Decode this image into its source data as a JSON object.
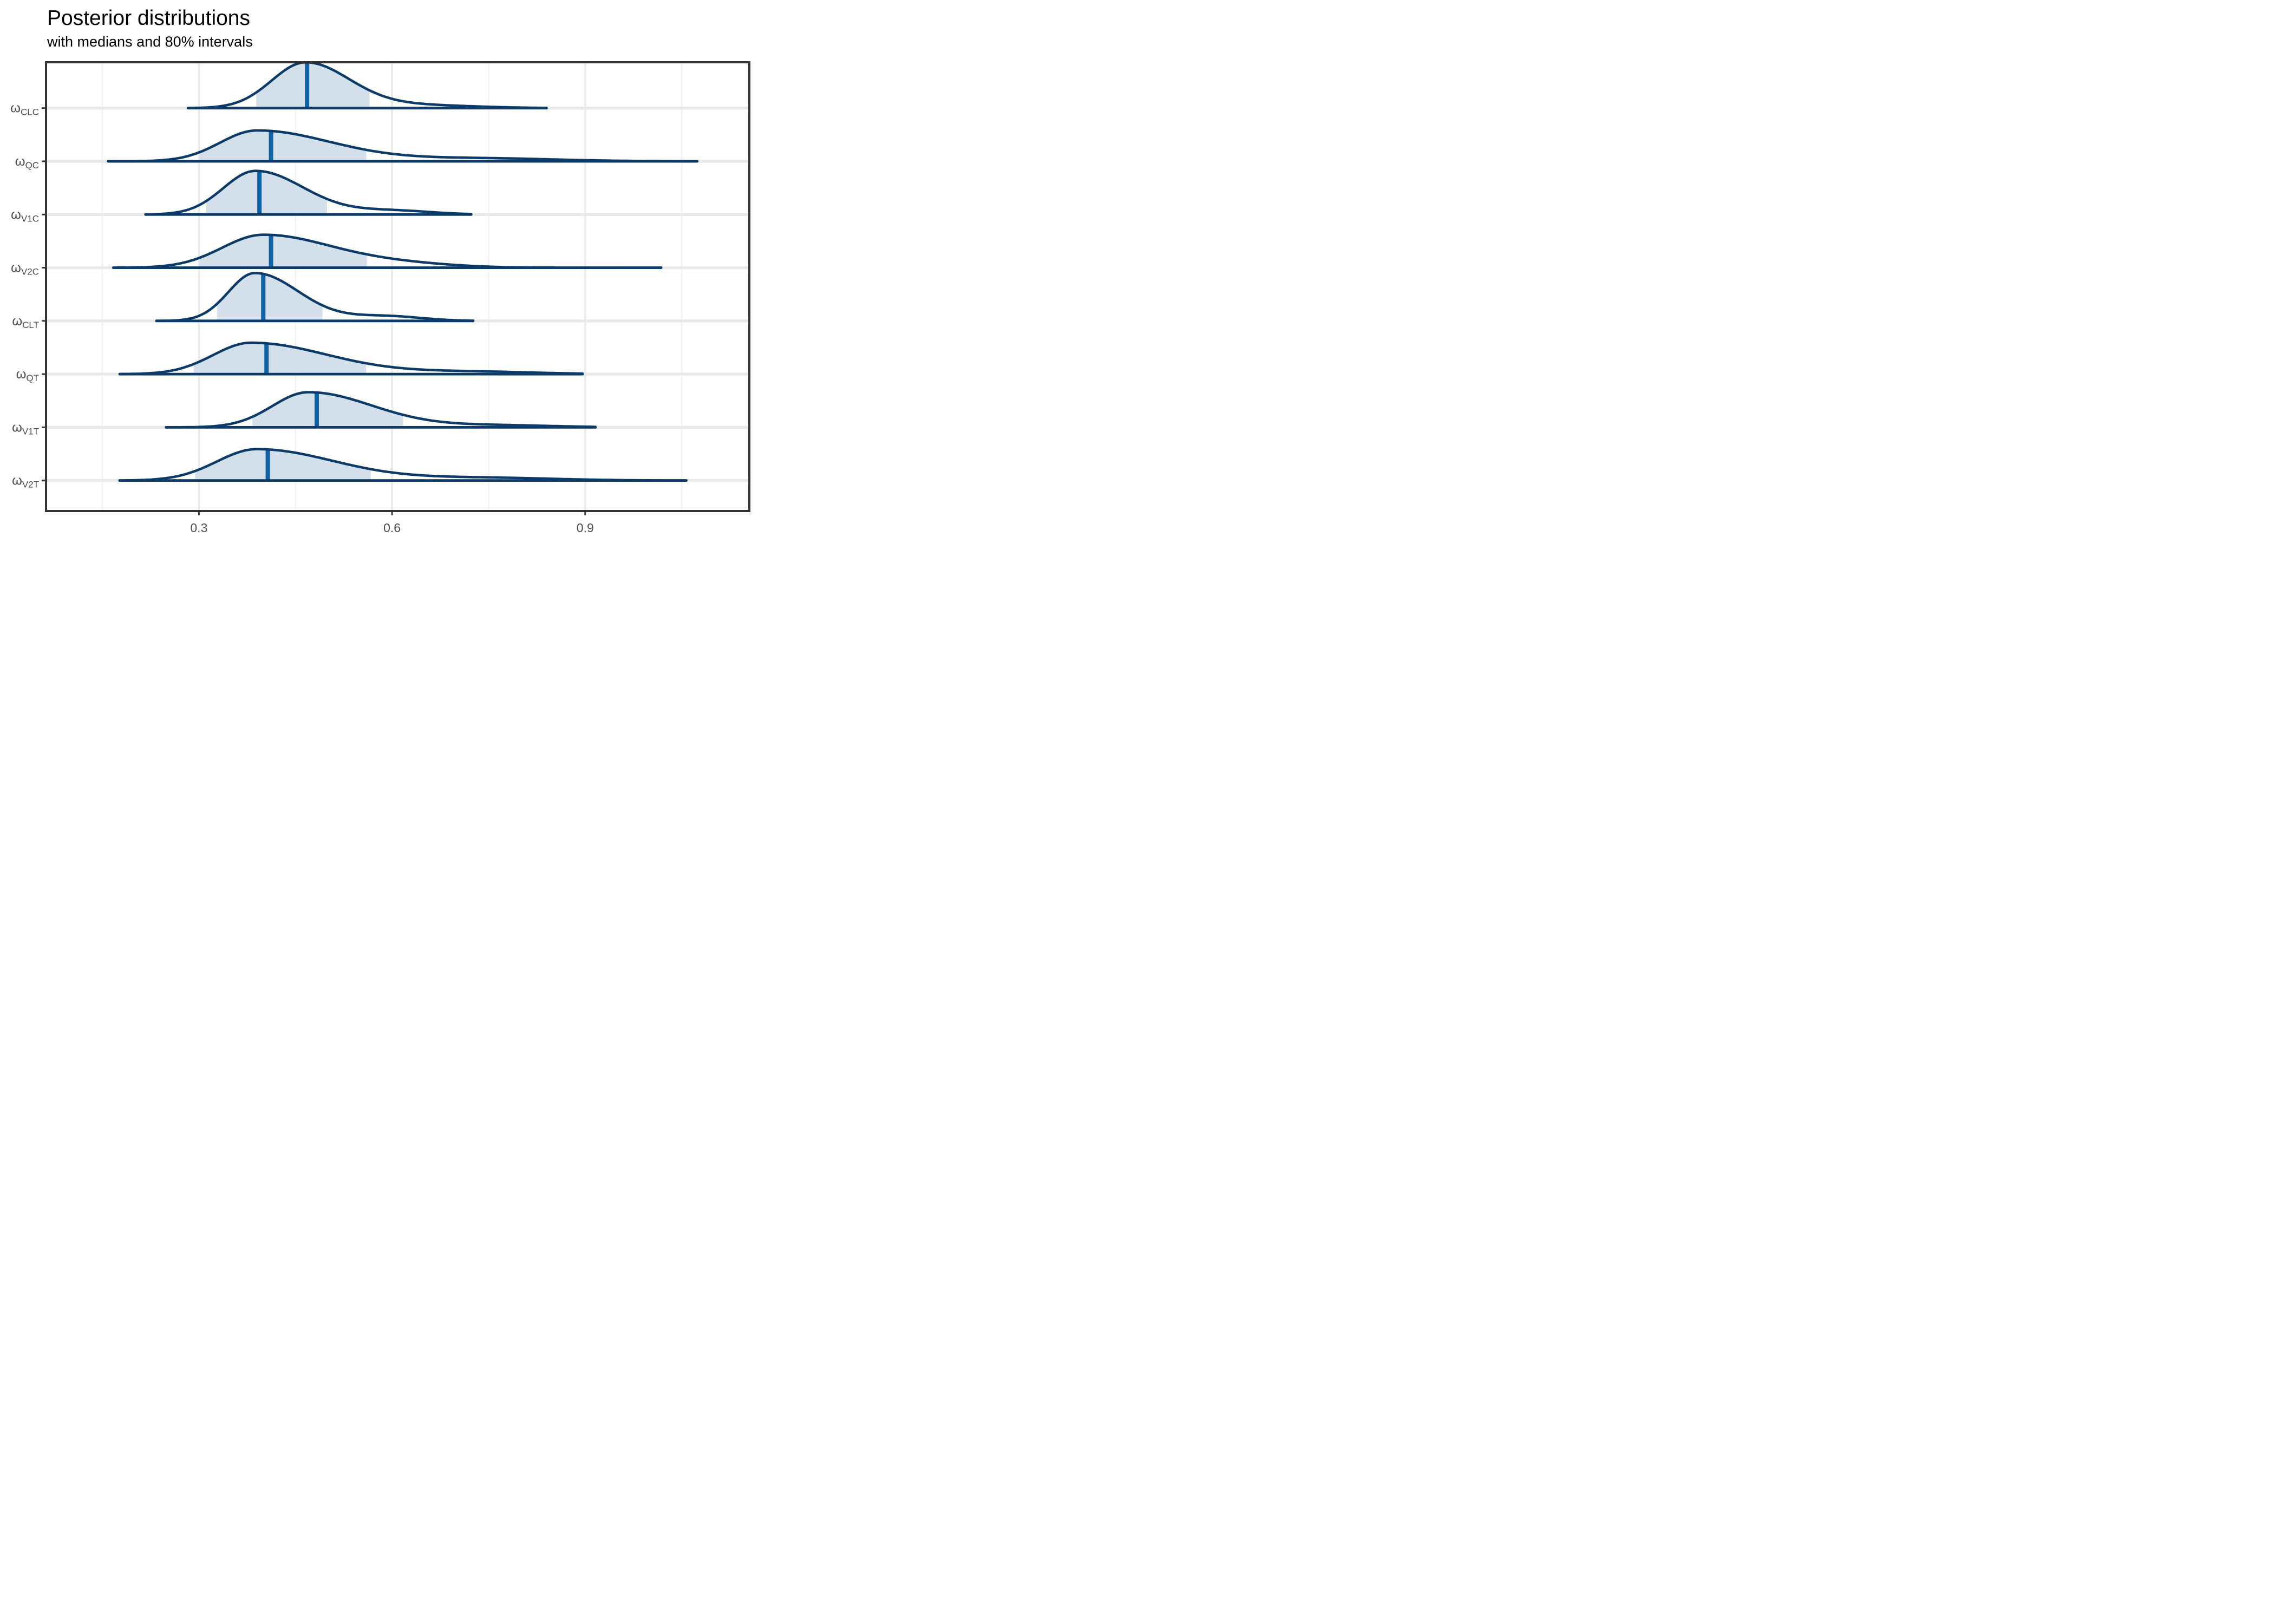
{
  "figure": {
    "title": "Posterior distributions",
    "subtitle": "with medians and 80% intervals"
  },
  "colors": {
    "outline": "#0d3b69",
    "median": "#0f62a3",
    "fill": "#d3e0eb",
    "panel_border": "#333333",
    "tick": "#333333",
    "grid_major": "#e7e7e7",
    "grid_minor": "#f2f2f2",
    "row_line": "#e9e9e9",
    "label_text": "#4d4d4d",
    "title_text": "#000000"
  },
  "chart_data": {
    "type": "area",
    "variant": "ridgeline-density",
    "title": "Posterior distributions",
    "subtitle": "with medians and 80% intervals",
    "xlabel": "",
    "ylabel": "",
    "legend": null,
    "grid": "vertical major+minor; horizontal line at each row baseline",
    "x_domain": [
      0.0625,
      1.155
    ],
    "x_major_ticks": [
      0.3,
      0.6,
      0.9
    ],
    "x_tick_labels": [
      "0.3",
      "0.6",
      "0.9"
    ],
    "x_minor_ticks": [
      0.15,
      0.45,
      0.75,
      1.05
    ],
    "interval_note": "shaded region = 80% interval (q10-q90), thick vertical line = median",
    "rows": [
      {
        "param": "CLC",
        "label_base": "ω",
        "label_sub": "CLC",
        "min": 0.283,
        "q10": 0.389,
        "median": 0.468,
        "q90": 0.565,
        "max": 0.84,
        "mode": 0.465,
        "rel_height": 0.86,
        "shape": {
          "sl": 0.052,
          "sr": 0.068,
          "tail_c": 0.63,
          "tail_s": 0.09,
          "tail_a": 0.07
        }
      },
      {
        "param": "QC",
        "label_base": "ω",
        "label_sub": "QC",
        "min": 0.159,
        "q10": 0.301,
        "median": 0.412,
        "q90": 0.56,
        "max": 1.074,
        "mode": 0.39,
        "rel_height": 0.58,
        "shape": {
          "sl": 0.057,
          "sr": 0.115,
          "tail_c": 0.73,
          "tail_s": 0.12,
          "tail_a": 0.1
        }
      },
      {
        "param": "V1C",
        "label_base": "ω",
        "label_sub": "V1C",
        "min": 0.217,
        "q10": 0.311,
        "median": 0.394,
        "q90": 0.499,
        "max": 0.723,
        "mode": 0.388,
        "rel_height": 0.82,
        "shape": {
          "sl": 0.05,
          "sr": 0.075,
          "tail_c": 0.6,
          "tail_s": 0.06,
          "tail_a": 0.09
        }
      },
      {
        "param": "V2C",
        "label_base": "ω",
        "label_sub": "V2C",
        "min": 0.167,
        "q10": 0.301,
        "median": 0.412,
        "q90": 0.561,
        "max": 1.018,
        "mode": 0.4,
        "rel_height": 0.62,
        "shape": {
          "sl": 0.064,
          "sr": 0.108,
          "tail_c": 0.62,
          "tail_s": 0.08,
          "tail_a": 0.1
        }
      },
      {
        "param": "CLT",
        "label_base": "ω",
        "label_sub": "CLT",
        "min": 0.234,
        "q10": 0.328,
        "median": 0.4,
        "q90": 0.492,
        "max": 0.726,
        "mode": 0.387,
        "rel_height": 0.9,
        "shape": {
          "sl": 0.041,
          "sr": 0.068,
          "tail_c": 0.59,
          "tail_s": 0.055,
          "tail_a": 0.1
        }
      },
      {
        "param": "QT",
        "label_base": "ω",
        "label_sub": "QT",
        "min": 0.177,
        "q10": 0.292,
        "median": 0.405,
        "q90": 0.56,
        "max": 0.896,
        "mode": 0.381,
        "rel_height": 0.59,
        "shape": {
          "sl": 0.059,
          "sr": 0.119,
          "tail_c": 0.72,
          "tail_s": 0.1,
          "tail_a": 0.08
        }
      },
      {
        "param": "V1T",
        "label_base": "ω",
        "label_sub": "V1T",
        "min": 0.249,
        "q10": 0.383,
        "median": 0.483,
        "q90": 0.617,
        "max": 0.916,
        "mode": 0.47,
        "rel_height": 0.66,
        "shape": {
          "sl": 0.056,
          "sr": 0.1,
          "tail_c": 0.76,
          "tail_s": 0.09,
          "tail_a": 0.06
        }
      },
      {
        "param": "V2T",
        "label_base": "ω",
        "label_sub": "V2T",
        "min": 0.177,
        "q10": 0.294,
        "median": 0.407,
        "q90": 0.567,
        "max": 1.057,
        "mode": 0.39,
        "rel_height": 0.59,
        "shape": {
          "sl": 0.062,
          "sr": 0.12,
          "tail_c": 0.74,
          "tail_s": 0.11,
          "tail_a": 0.09
        }
      }
    ]
  }
}
